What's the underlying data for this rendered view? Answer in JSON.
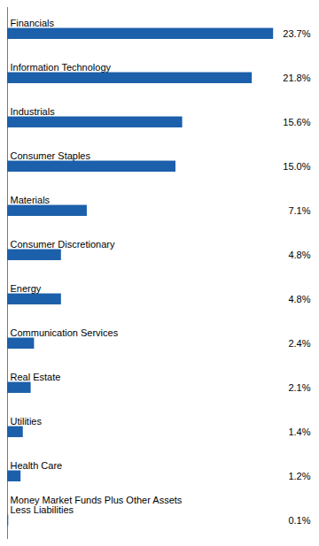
{
  "chart_data": {
    "type": "bar",
    "orientation": "horizontal",
    "categories": [
      "Financials",
      "Information Technology",
      "Industrials",
      "Consumer Staples",
      "Materials",
      "Consumer Discretionary",
      "Energy",
      "Communication Services",
      "Real Estate",
      "Utilities",
      "Health Care",
      "Money Market Funds Plus Other Assets\nLess Liabilities"
    ],
    "values": [
      23.7,
      21.8,
      15.6,
      15.0,
      7.1,
      4.8,
      4.8,
      2.4,
      2.1,
      1.4,
      1.2,
      0.1
    ],
    "value_labels": [
      "23.7%",
      "21.8%",
      "15.6%",
      "15.0%",
      "7.1%",
      "4.8%",
      "4.8%",
      "2.4%",
      "2.1%",
      "1.4%",
      "1.2%",
      "0.1%"
    ],
    "color": "#1c5faa",
    "xlim": [
      0,
      27
    ],
    "tick_labels": false,
    "data_labels": true
  }
}
